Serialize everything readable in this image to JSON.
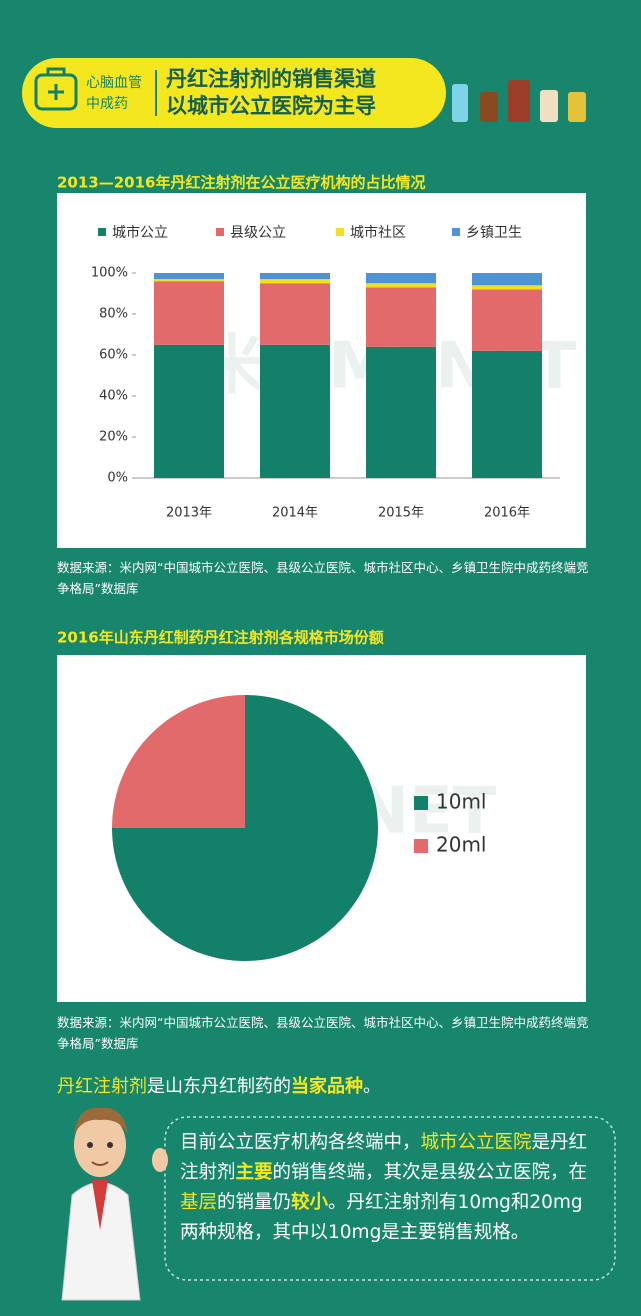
{
  "header": {
    "tag": [
      "心脑血管",
      "中成药"
    ],
    "title": [
      "丹红注射剂的销售渠道",
      "以城市公立医院为主导"
    ]
  },
  "watermark": "米内MENET",
  "chart_data": [
    {
      "type": "bar",
      "stacked": true,
      "title": "2013—2016年丹红注射剂在公立医疗机构的占比情况",
      "categories": [
        "2013年",
        "2014年",
        "2015年",
        "2016年"
      ],
      "series": [
        {
          "name": "城市公立",
          "color": "#13806a",
          "values": [
            65,
            65,
            64,
            62
          ]
        },
        {
          "name": "县级公立",
          "color": "#e36a6a",
          "values": [
            31,
            30,
            29,
            30
          ]
        },
        {
          "name": "城市社区",
          "color": "#f3df1c",
          "values": [
            1,
            2,
            2,
            2
          ]
        },
        {
          "name": "乡镇卫生",
          "color": "#4e93d4",
          "values": [
            3,
            3,
            5,
            6
          ]
        }
      ],
      "ylim": [
        0,
        100
      ],
      "yticks": [
        {
          "value": 0,
          "label": "0%"
        },
        {
          "value": 20,
          "label": "20%"
        },
        {
          "value": 40,
          "label": "40%"
        },
        {
          "value": 60,
          "label": "60%"
        },
        {
          "value": 80,
          "label": "80%"
        },
        {
          "value": 100,
          "label": "100%"
        }
      ],
      "grid": false,
      "legend": "top",
      "source": "数据来源：米内网“中国城市公立医院、县级公立医院、城市社区中心、乡镇卫生院中成药终端竞争格局”数据库"
    },
    {
      "type": "pie",
      "title": "2016年山东丹红制药丹红注射剂各规格市场份额",
      "categories": [
        "10ml",
        "20ml"
      ],
      "values": [
        75,
        25
      ],
      "colors": [
        "#13806a",
        "#e36a6a"
      ],
      "legend": "right",
      "source": "数据来源：米内网“中国城市公立医院、县级公立医院、城市社区中心、乡镇卫生院中成药终端竞争格局”数据库"
    }
  ],
  "intro": [
    {
      "text": "丹红注射剂",
      "style": "hl"
    },
    {
      "text": "是山东丹红制药的",
      "style": "plain"
    },
    {
      "text": "当家品种",
      "style": "strong"
    },
    {
      "text": "。",
      "style": "plain"
    }
  ],
  "paragraph": [
    {
      "text": "目前公立医疗机构各终端中，",
      "style": "plain"
    },
    {
      "text": "城市公立医院",
      "style": "hl"
    },
    {
      "text": "是丹红注射剂",
      "style": "plain"
    },
    {
      "text": "主要",
      "style": "strong"
    },
    {
      "text": "的销售终端，其次是县级公立医院，在",
      "style": "plain"
    },
    {
      "text": "基层",
      "style": "hl"
    },
    {
      "text": "的销量仍",
      "style": "plain"
    },
    {
      "text": "较小",
      "style": "strong"
    },
    {
      "text": "。丹红注射剂有10mg和20mg两种规格，其中以10mg是主要销售规格。",
      "style": "plain"
    }
  ]
}
